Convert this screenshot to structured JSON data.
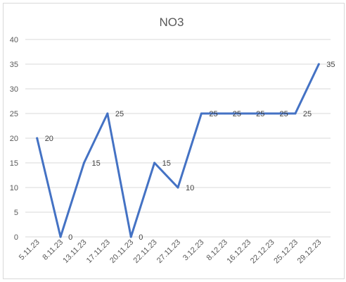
{
  "chart_data": {
    "type": "line",
    "title": "NO3",
    "xlabel": "",
    "ylabel": "",
    "categories": [
      "5.11.23",
      "8.11.23",
      "13.11.23",
      "17.11.23",
      "20.11.23",
      "22.11.23",
      "27.11.23",
      "3.12.23",
      "8.12.23",
      "16.12.23",
      "22.12.23",
      "25.12.23",
      "29.12.23"
    ],
    "values": [
      20,
      0,
      15,
      25,
      0,
      15,
      10,
      25,
      25,
      25,
      25,
      25,
      35
    ],
    "data_labels": [
      "20",
      "0",
      "15",
      "25",
      "0",
      "15",
      "10",
      "25",
      "25",
      "25",
      "25",
      "25",
      "35"
    ],
    "ylim": [
      0,
      40
    ],
    "yticks": [
      0,
      5,
      10,
      15,
      20,
      25,
      30,
      35,
      40
    ],
    "grid": true,
    "legend": "none",
    "line_color": "#4472c4",
    "grid_color": "#d9d9d9"
  }
}
